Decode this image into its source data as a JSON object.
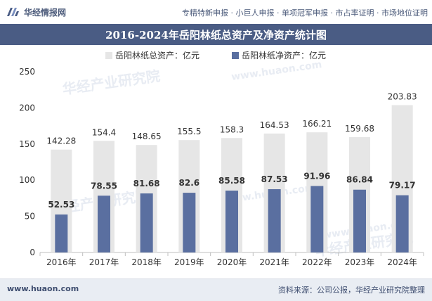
{
  "header": {
    "brand": "华经情报网",
    "tagline": "专精特新申报 · 小巨人申报 · 单项冠军申报 · 市占率证明 · 市场地位证明"
  },
  "watermarks": [
    "华经产业研究院",
    "www.huaon.com",
    "华经产业研究院",
    "www.huaon.com",
    "华经产业研究院",
    "www.huaon.com"
  ],
  "chart_data": {
    "type": "bar",
    "title": "2016-2024年岳阳林纸总资产及净资产统计图",
    "categories": [
      "2016年",
      "2017年",
      "2018年",
      "2019年",
      "2020年",
      "2021年",
      "2022年",
      "2023年",
      "2024年"
    ],
    "series": [
      {
        "name": "岳阳林纸总资产：亿元",
        "color": "#e6e6e6",
        "values": [
          142.28,
          154.4,
          148.65,
          155.5,
          158.3,
          164.53,
          166.21,
          159.68,
          203.83
        ]
      },
      {
        "name": "岳阳林纸净资产：亿元",
        "color": "#5a6fa0",
        "values": [
          52.53,
          78.55,
          81.68,
          82.6,
          85.58,
          87.53,
          91.96,
          86.84,
          79.17
        ]
      }
    ],
    "value_labels": {
      "total": [
        "142.28",
        "154.4",
        "148.65",
        "155.5",
        "158.3",
        "164.53",
        "166.21",
        "159.68",
        "203.83"
      ],
      "net": [
        "52.53",
        "78.55",
        "81.68",
        "82.6",
        "85.58",
        "87.53",
        "91.96",
        "86.84",
        "79.17"
      ]
    },
    "ylim": [
      0,
      250
    ],
    "yticks": [
      0,
      50,
      100,
      150,
      200,
      250
    ],
    "ytick_labels": [
      "0",
      "50",
      "100",
      "150",
      "200",
      "250"
    ],
    "xlabel": "",
    "ylabel": "",
    "legend_position": "top-center"
  },
  "footer": {
    "url": "www.huaon.com",
    "source": "资料来源：公司公报，华经产业研究院整理"
  }
}
